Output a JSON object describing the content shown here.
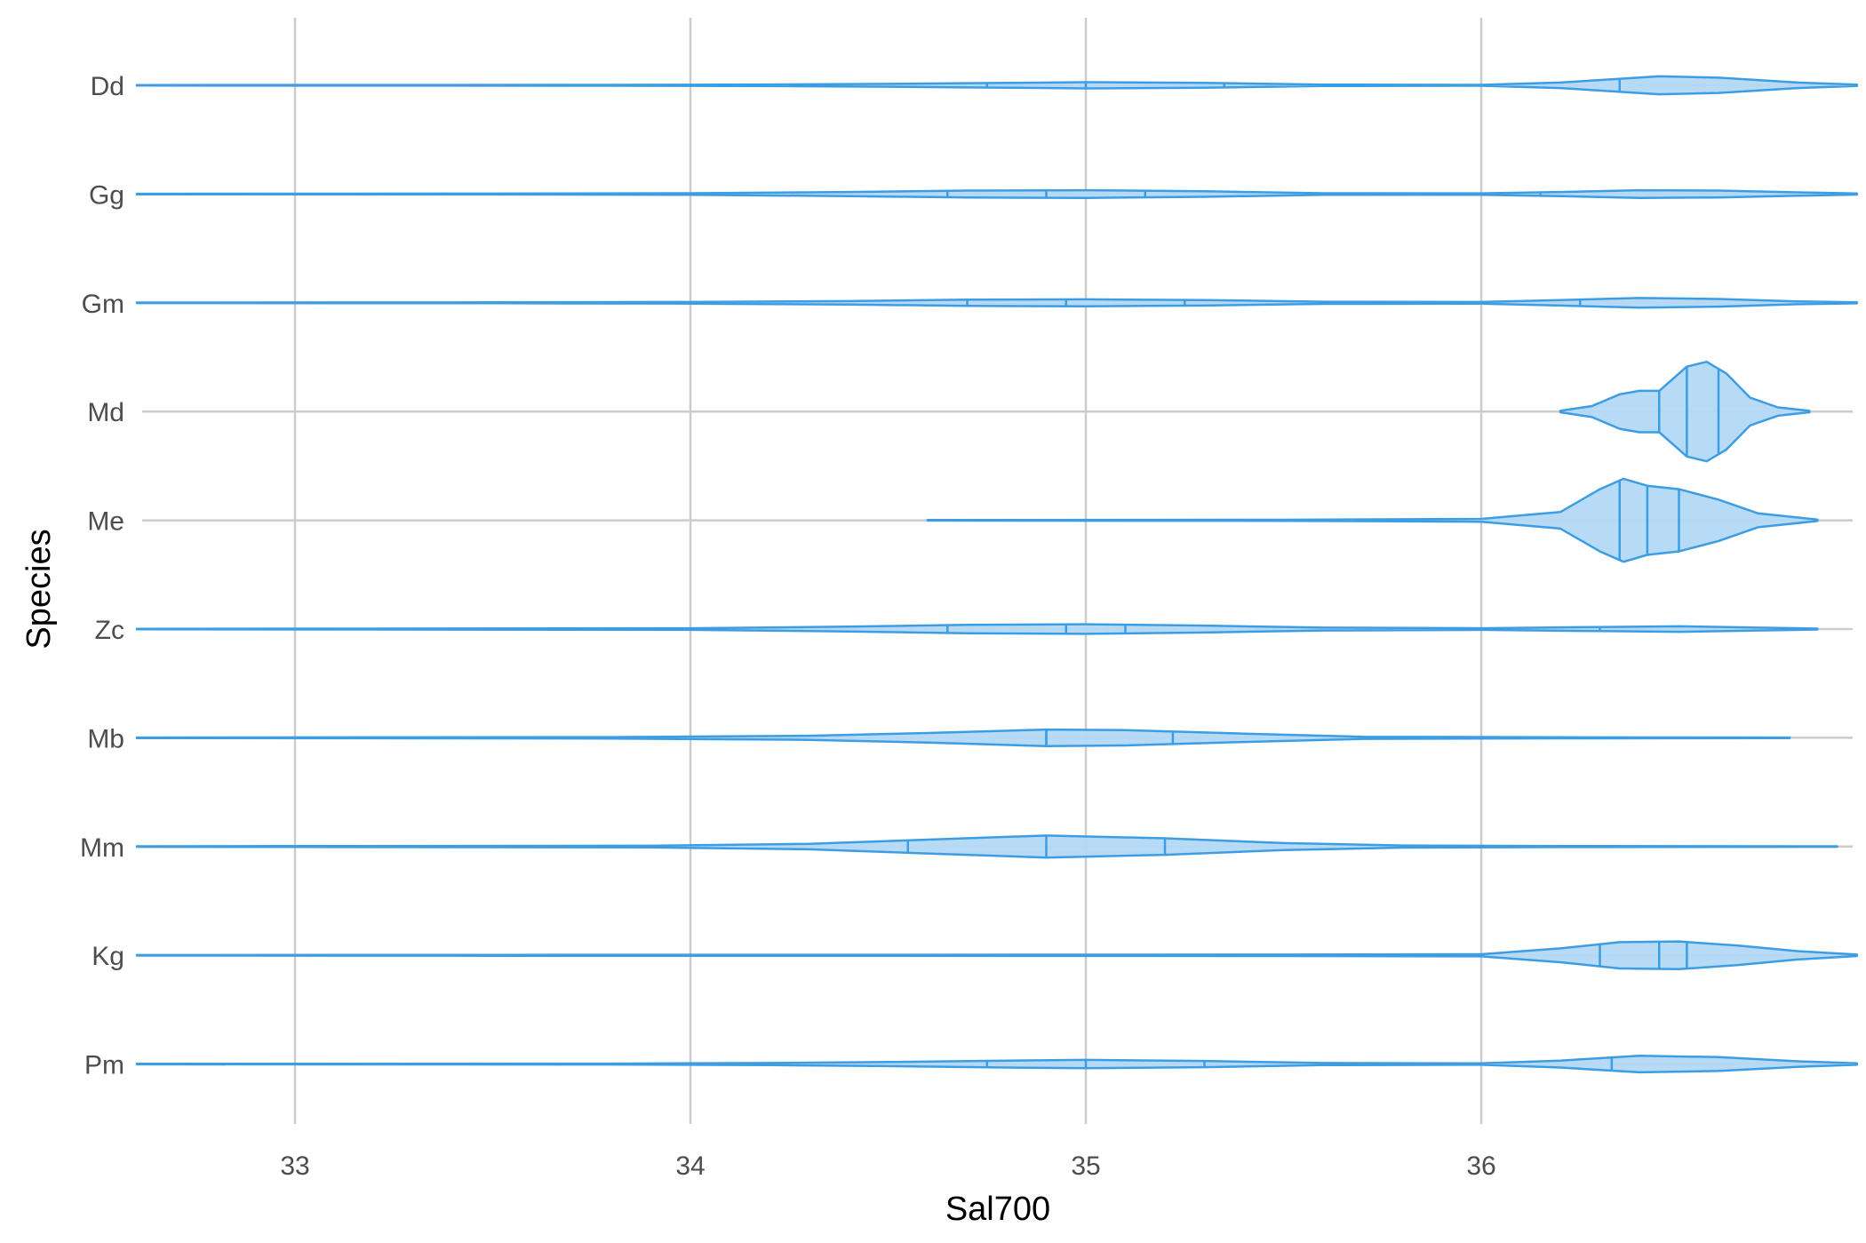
{
  "chart_data": {
    "type": "violin",
    "xlabel": "Sal700",
    "ylabel": "Species",
    "xlim": [
      32.6,
      36.95
    ],
    "x_ticks": [
      33,
      34,
      35,
      36
    ],
    "x_tick_labels": [
      "33",
      "34",
      "35",
      "36"
    ],
    "grid": true,
    "legend": "none",
    "colors": {
      "fill": "#b3d9f7",
      "stroke": "#3d9de3",
      "grid": "#cccccc"
    },
    "categories": [
      "Dd",
      "Gg",
      "Gm",
      "Md",
      "Me",
      "Zc",
      "Mb",
      "Mm",
      "Kg",
      "Pm"
    ],
    "series": [
      {
        "category": "Dd",
        "range": [
          32.6,
          36.95
        ],
        "quartiles": [
          34.75,
          35.0,
          35.35
        ],
        "density": [
          [
            32.6,
            0.004
          ],
          [
            33.8,
            0.006
          ],
          [
            34.2,
            0.012
          ],
          [
            34.5,
            0.02
          ],
          [
            34.8,
            0.035
          ],
          [
            35.0,
            0.045
          ],
          [
            35.3,
            0.035
          ],
          [
            35.6,
            0.01
          ],
          [
            36.0,
            0.006
          ],
          [
            36.2,
            0.04
          ],
          [
            36.45,
            0.13
          ],
          [
            36.6,
            0.11
          ],
          [
            36.8,
            0.04
          ],
          [
            36.95,
            0.01
          ]
        ],
        "secondary_quartile": 36.35
      },
      {
        "category": "Gg",
        "range": [
          32.6,
          36.95
        ],
        "quartiles": [
          34.65,
          34.9,
          35.15
        ],
        "density": [
          [
            32.6,
            0.004
          ],
          [
            33.5,
            0.006
          ],
          [
            34.0,
            0.012
          ],
          [
            34.4,
            0.03
          ],
          [
            34.7,
            0.05
          ],
          [
            35.0,
            0.055
          ],
          [
            35.3,
            0.04
          ],
          [
            35.6,
            0.012
          ],
          [
            36.0,
            0.01
          ],
          [
            36.2,
            0.03
          ],
          [
            36.4,
            0.055
          ],
          [
            36.6,
            0.05
          ],
          [
            36.8,
            0.025
          ],
          [
            36.95,
            0.008
          ]
        ],
        "secondary_quartile": 36.15
      },
      {
        "category": "Gm",
        "range": [
          32.6,
          36.95
        ],
        "quartiles": [
          34.7,
          34.95,
          35.25
        ],
        "density": [
          [
            32.6,
            0.004
          ],
          [
            33.5,
            0.006
          ],
          [
            34.0,
            0.012
          ],
          [
            34.4,
            0.025
          ],
          [
            34.7,
            0.045
          ],
          [
            35.0,
            0.05
          ],
          [
            35.3,
            0.04
          ],
          [
            35.6,
            0.015
          ],
          [
            36.0,
            0.012
          ],
          [
            36.2,
            0.04
          ],
          [
            36.4,
            0.07
          ],
          [
            36.6,
            0.055
          ],
          [
            36.8,
            0.02
          ],
          [
            36.95,
            0.008
          ]
        ],
        "secondary_quartile": 36.25
      },
      {
        "category": "Md",
        "range": [
          36.2,
          36.83
        ],
        "quartiles": [
          36.45,
          36.52,
          36.6
        ],
        "density": [
          [
            36.2,
            0.01
          ],
          [
            36.28,
            0.08
          ],
          [
            36.35,
            0.25
          ],
          [
            36.4,
            0.3
          ],
          [
            36.45,
            0.3
          ],
          [
            36.52,
            0.65
          ],
          [
            36.57,
            0.72
          ],
          [
            36.62,
            0.55
          ],
          [
            36.68,
            0.2
          ],
          [
            36.75,
            0.06
          ],
          [
            36.83,
            0.01
          ]
        ]
      },
      {
        "category": "Me",
        "range": [
          34.6,
          36.85
        ],
        "quartiles": [
          36.35,
          36.42,
          36.5
        ],
        "density": [
          [
            34.6,
            0.004
          ],
          [
            35.5,
            0.008
          ],
          [
            36.0,
            0.02
          ],
          [
            36.2,
            0.12
          ],
          [
            36.3,
            0.45
          ],
          [
            36.36,
            0.6
          ],
          [
            36.42,
            0.5
          ],
          [
            36.5,
            0.45
          ],
          [
            36.6,
            0.3
          ],
          [
            36.7,
            0.1
          ],
          [
            36.85,
            0.01
          ]
        ]
      },
      {
        "category": "Zc",
        "range": [
          32.6,
          36.85
        ],
        "quartiles": [
          34.65,
          34.95,
          35.1
        ],
        "density": [
          [
            32.6,
            0.004
          ],
          [
            33.2,
            0.006
          ],
          [
            34.0,
            0.012
          ],
          [
            34.4,
            0.035
          ],
          [
            34.7,
            0.06
          ],
          [
            35.0,
            0.07
          ],
          [
            35.3,
            0.05
          ],
          [
            35.6,
            0.02
          ],
          [
            36.0,
            0.012
          ],
          [
            36.3,
            0.03
          ],
          [
            36.5,
            0.04
          ],
          [
            36.7,
            0.02
          ],
          [
            36.85,
            0.006
          ]
        ],
        "secondary_quartile": 36.3
      },
      {
        "category": "Mb",
        "range": [
          32.6,
          36.78
        ],
        "quartiles": [
          34.9,
          34.9,
          35.22
        ],
        "density": [
          [
            32.6,
            0.004
          ],
          [
            33.1,
            0.006
          ],
          [
            33.8,
            0.01
          ],
          [
            34.3,
            0.03
          ],
          [
            34.6,
            0.07
          ],
          [
            34.9,
            0.12
          ],
          [
            35.1,
            0.11
          ],
          [
            35.4,
            0.06
          ],
          [
            35.7,
            0.015
          ],
          [
            36.2,
            0.008
          ],
          [
            36.78,
            0.004
          ]
        ]
      },
      {
        "category": "Mm",
        "range": [
          32.6,
          36.9
        ],
        "quartiles": [
          34.55,
          34.9,
          35.2
        ],
        "density": [
          [
            32.6,
            0.004
          ],
          [
            33.0,
            0.006
          ],
          [
            33.9,
            0.012
          ],
          [
            34.3,
            0.04
          ],
          [
            34.6,
            0.1
          ],
          [
            34.9,
            0.16
          ],
          [
            35.2,
            0.12
          ],
          [
            35.5,
            0.05
          ],
          [
            35.8,
            0.015
          ],
          [
            36.2,
            0.008
          ],
          [
            36.9,
            0.004
          ]
        ]
      },
      {
        "category": "Kg",
        "range": [
          32.6,
          36.95
        ],
        "quartiles": [
          36.3,
          36.45,
          36.52
        ],
        "density": [
          [
            32.6,
            0.004
          ],
          [
            33.5,
            0.006
          ],
          [
            34.5,
            0.008
          ],
          [
            35.5,
            0.01
          ],
          [
            36.0,
            0.015
          ],
          [
            36.2,
            0.1
          ],
          [
            36.35,
            0.19
          ],
          [
            36.5,
            0.2
          ],
          [
            36.65,
            0.14
          ],
          [
            36.8,
            0.06
          ],
          [
            36.95,
            0.01
          ]
        ]
      },
      {
        "category": "Pm",
        "range": [
          32.6,
          36.95
        ],
        "quartiles": [
          34.75,
          35.0,
          35.3
        ],
        "density": [
          [
            32.6,
            0.004
          ],
          [
            33.8,
            0.006
          ],
          [
            34.2,
            0.015
          ],
          [
            34.5,
            0.03
          ],
          [
            34.8,
            0.05
          ],
          [
            35.0,
            0.06
          ],
          [
            35.3,
            0.045
          ],
          [
            35.6,
            0.015
          ],
          [
            36.0,
            0.01
          ],
          [
            36.2,
            0.05
          ],
          [
            36.4,
            0.12
          ],
          [
            36.6,
            0.1
          ],
          [
            36.8,
            0.04
          ],
          [
            36.95,
            0.01
          ]
        ],
        "secondary_quartile": 36.33
      }
    ]
  }
}
